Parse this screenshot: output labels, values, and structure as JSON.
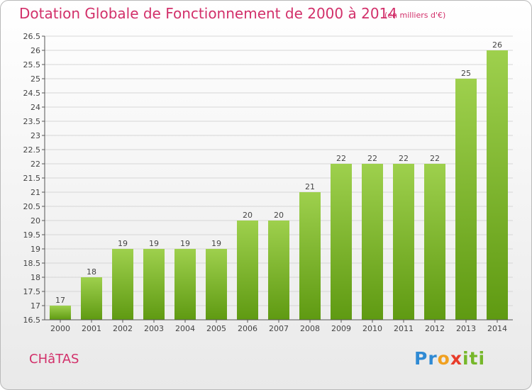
{
  "header": {
    "title": "Dotation Globale de Fonctionnement de 2000 à 2014",
    "subtitle": "(en milliers d'€)"
  },
  "commune": "CHâTAS",
  "logo": {
    "parts": [
      "Pr",
      "o",
      "x",
      "iti"
    ]
  },
  "colors": {
    "bar_top": "#9ed04d",
    "bar_bottom": "#5f9a12",
    "title": "#d2306a",
    "grid": "#d6d6d6"
  },
  "chart_data": {
    "type": "bar",
    "title": "Dotation Globale de Fonctionnement de 2000 à 2014",
    "ylabel": "en milliers d'€",
    "xlabel": "",
    "categories": [
      "2000",
      "2001",
      "2002",
      "2003",
      "2004",
      "2005",
      "2006",
      "2007",
      "2008",
      "2009",
      "2010",
      "2011",
      "2012",
      "2013",
      "2014"
    ],
    "values": [
      17,
      18,
      19,
      19,
      19,
      19,
      20,
      20,
      21,
      22,
      22,
      22,
      22,
      25,
      26
    ],
    "ylim": [
      16.5,
      26.5
    ],
    "yticks": [
      "16.5",
      "17",
      "17.5",
      "18",
      "18.5",
      "19",
      "19.5",
      "20",
      "20.5",
      "21",
      "21.5",
      "22",
      "22.5",
      "23",
      "23.5",
      "24",
      "24.5",
      "25",
      "25.5",
      "26",
      "26.5"
    ],
    "grid": true
  }
}
